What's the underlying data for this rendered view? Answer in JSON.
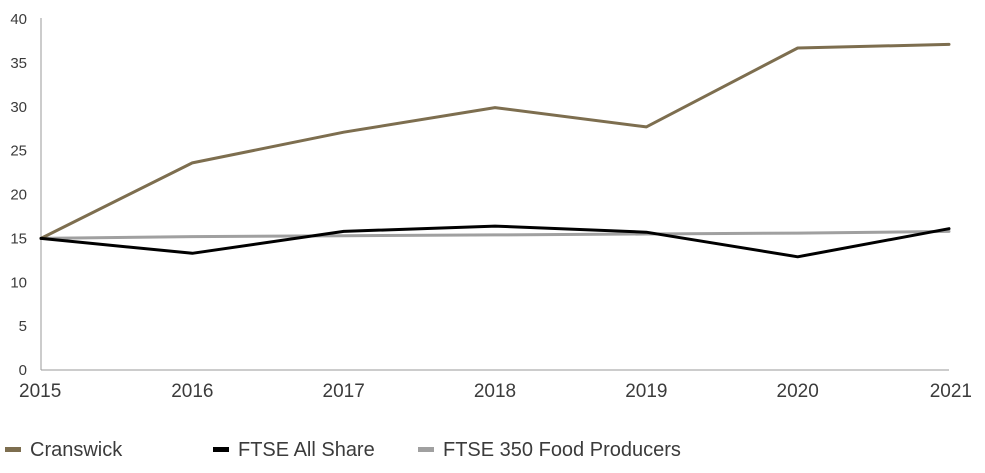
{
  "chart_data": {
    "type": "line",
    "title": "",
    "xlabel": "",
    "ylabel": "",
    "x": [
      "2015",
      "2016",
      "2017",
      "2018",
      "2019",
      "2020",
      "2021"
    ],
    "ylim": [
      0,
      40
    ],
    "yticks": [
      0,
      5,
      10,
      15,
      20,
      25,
      30,
      35,
      40
    ],
    "grid": false,
    "legend_position": "bottom-left",
    "series": [
      {
        "name": "Cranswick",
        "color": "#7d6e4f",
        "values": [
          15.0,
          23.6,
          27.1,
          29.9,
          27.7,
          36.7,
          37.1
        ]
      },
      {
        "name": "FTSE All Share",
        "color": "#000000",
        "values": [
          15.0,
          13.3,
          15.8,
          16.4,
          15.7,
          12.9,
          16.1
        ]
      },
      {
        "name": "FTSE 350 Food Producers",
        "color": "#a0a0a0",
        "values": [
          15.0,
          15.2,
          15.3,
          15.4,
          15.5,
          15.6,
          15.8
        ]
      }
    ]
  }
}
